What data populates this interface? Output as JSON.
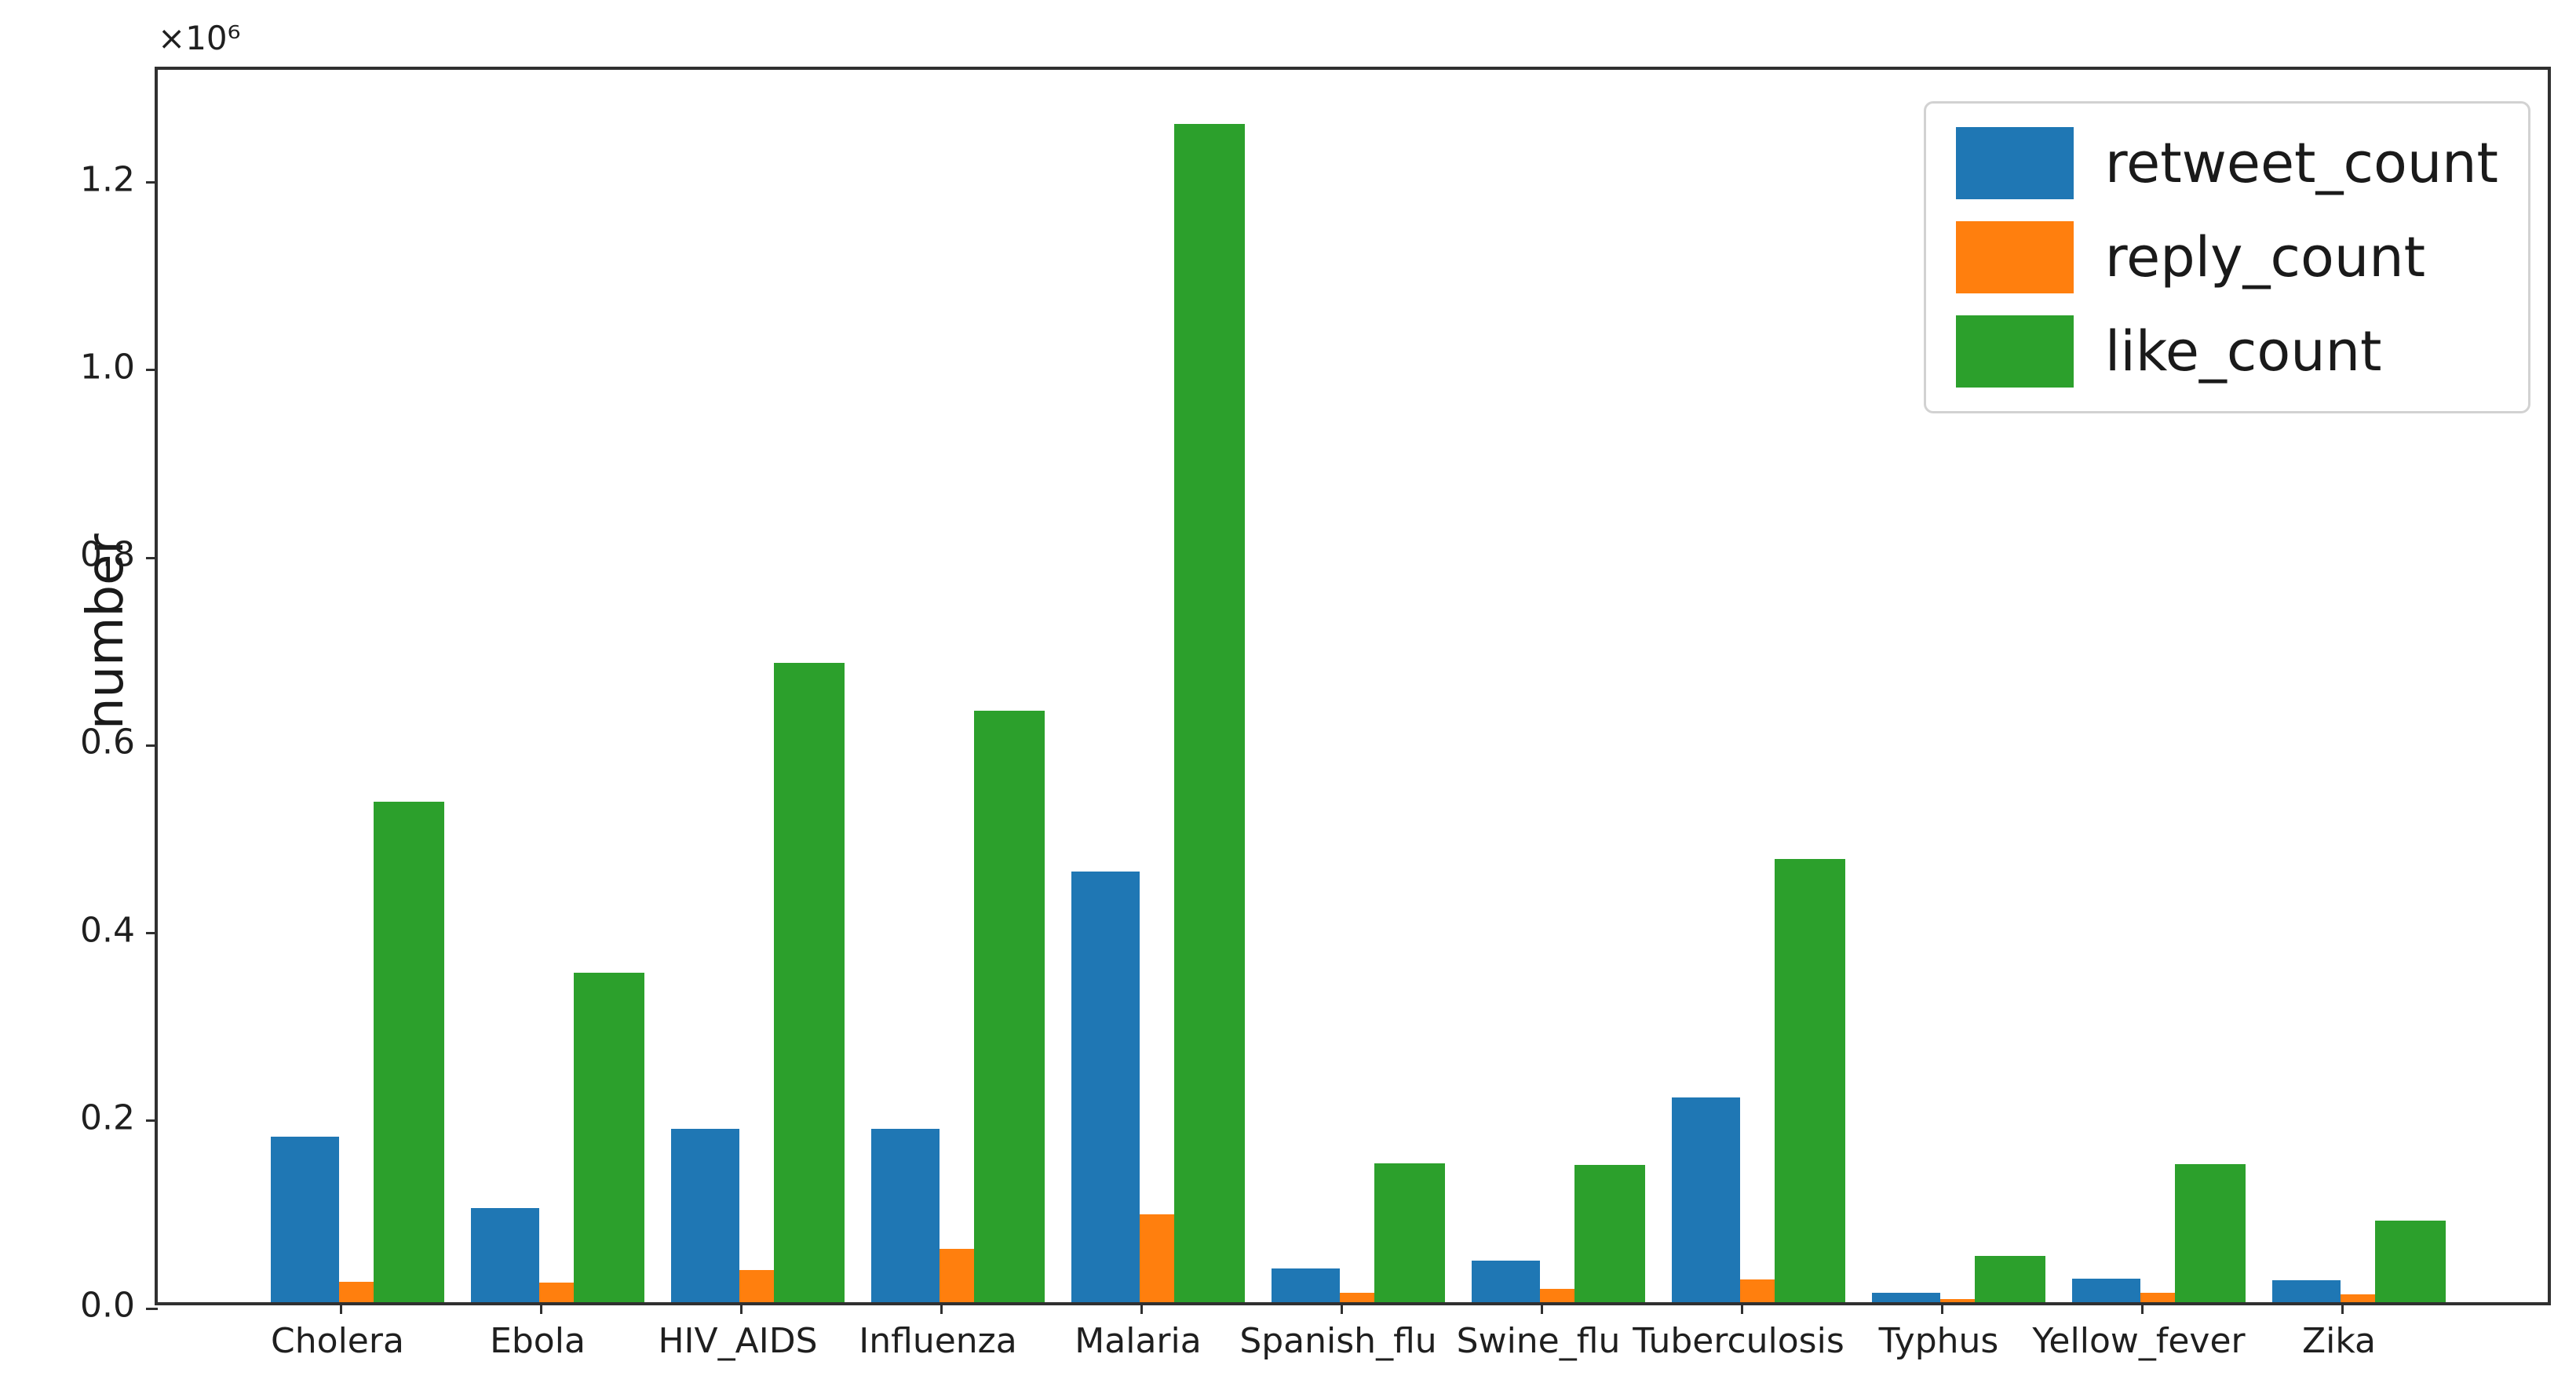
{
  "figure": {
    "ylabel": "number",
    "offset_label": "×10⁶",
    "background": "#ffffff"
  },
  "legend": {
    "position": "upper right",
    "entries": [
      {
        "label": "retweet_count",
        "color": "#1f77b4"
      },
      {
        "label": "reply_count",
        "color": "#ff7f0e"
      },
      {
        "label": "like_count",
        "color": "#2ca02c"
      }
    ]
  },
  "chart_data": {
    "type": "bar",
    "title": "",
    "xlabel": "",
    "ylabel": "number",
    "y_multiplier_label": "×10⁶",
    "legend_position": "upper right",
    "grid": false,
    "ylim": [
      0,
      1320000
    ],
    "yticks": [
      0,
      200000,
      400000,
      600000,
      800000,
      1000000,
      1200000
    ],
    "ytick_labels": [
      "0.0",
      "0.2",
      "0.4",
      "0.6",
      "0.8",
      "1.0",
      "1.2"
    ],
    "categories": [
      "Cholera",
      "Ebola",
      "HIV_AIDS",
      "Influenza",
      "Malaria",
      "Spanish_flu",
      "Swine_flu",
      "Tuberculosis",
      "Typhus",
      "Yellow_fever",
      "Zika"
    ],
    "series": [
      {
        "name": "retweet_count",
        "color": "#1f77b4",
        "values": [
          176000,
          100000,
          185000,
          185000,
          459000,
          36000,
          44000,
          218000,
          10000,
          25000,
          23000
        ]
      },
      {
        "name": "reply_count",
        "color": "#ff7f0e",
        "values": [
          22000,
          21000,
          34000,
          57000,
          94000,
          10000,
          14000,
          24000,
          3500,
          10000,
          8000
        ]
      },
      {
        "name": "like_count",
        "color": "#2ca02c",
        "values": [
          533000,
          351000,
          681000,
          630000,
          1256000,
          148000,
          146000,
          472000,
          49000,
          147000,
          87000
        ]
      }
    ]
  }
}
